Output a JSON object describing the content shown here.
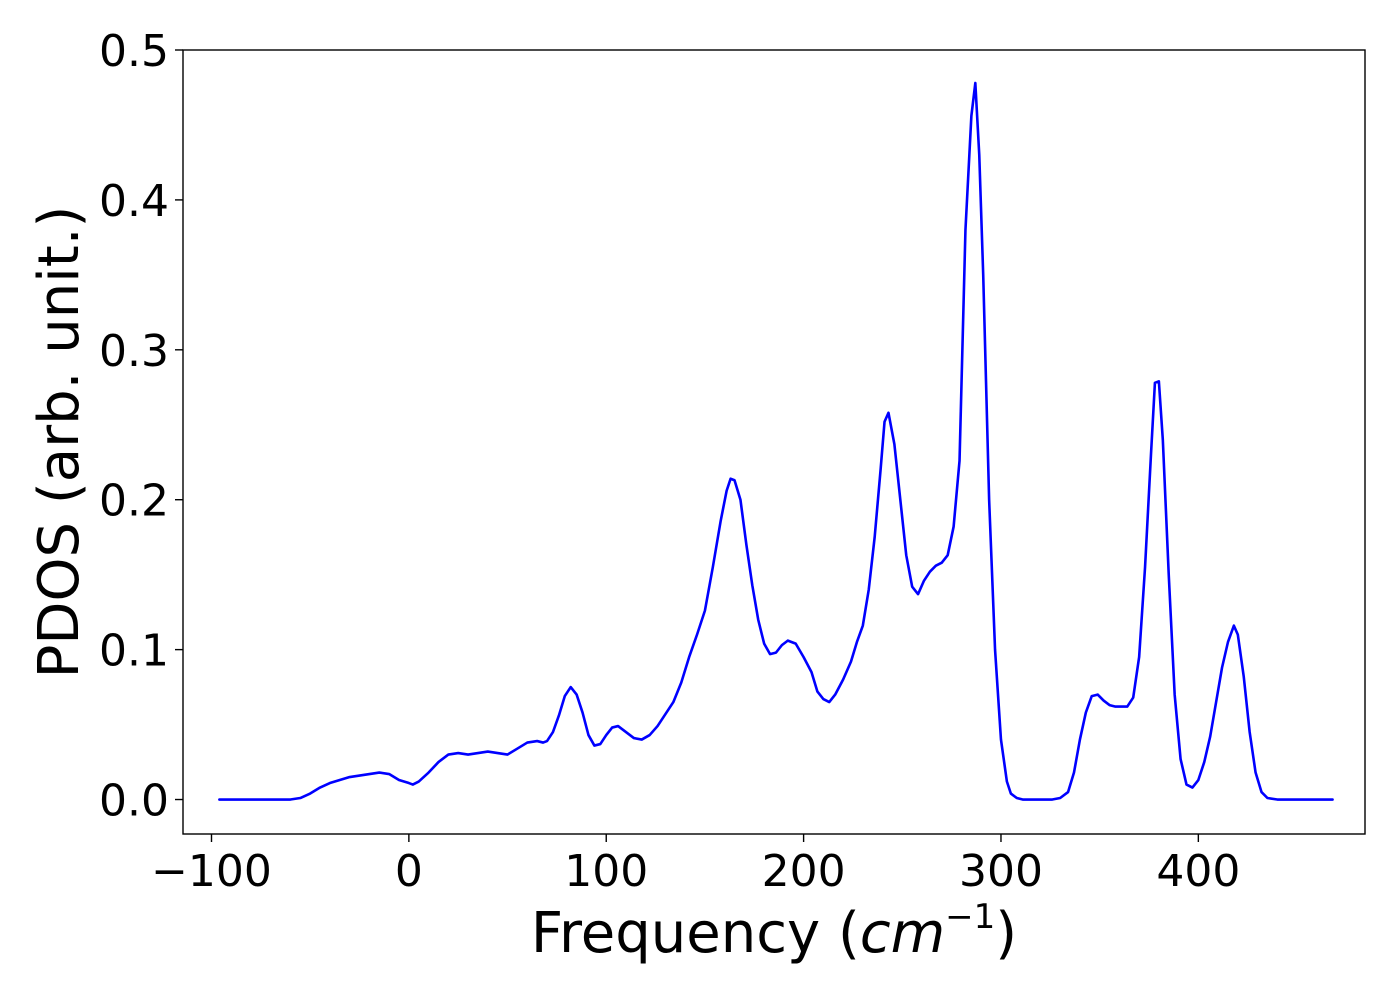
{
  "chart_data": {
    "type": "line",
    "title": "",
    "xlabel": "Frequency (cm⁻¹)",
    "xlabel_parts": {
      "prefix": "Frequency (",
      "unit_base": "cm",
      "unit_exp": "−1",
      "suffix": ")"
    },
    "ylabel": "PDOS (arb. unit.)",
    "xlim": [
      -100,
      470
    ],
    "ylim": [
      -0.023,
      0.5
    ],
    "grid": false,
    "legend": "none",
    "x_ticks": [
      -100,
      0,
      100,
      200,
      300,
      400
    ],
    "x_tick_labels": [
      "−100",
      "0",
      "100",
      "200",
      "300",
      "400"
    ],
    "y_ticks": [
      0.0,
      0.1,
      0.2,
      0.3,
      0.4,
      0.5
    ],
    "y_tick_labels": [
      "0.0",
      "0.1",
      "0.2",
      "0.3",
      "0.4",
      "0.5"
    ],
    "series": [
      {
        "color": "#0000ff",
        "x": [
          -96,
          -80,
          -70,
          -60,
          -55,
          -50,
          -45,
          -40,
          -35,
          -30,
          -25,
          -20,
          -15,
          -10,
          -5,
          0,
          2,
          5,
          10,
          15,
          20,
          25,
          30,
          35,
          40,
          45,
          50,
          55,
          60,
          65,
          68,
          70,
          73,
          76,
          79,
          82,
          85,
          88,
          91,
          94,
          97,
          100,
          103,
          106,
          110,
          114,
          118,
          122,
          126,
          130,
          134,
          138,
          142,
          146,
          150,
          154,
          158,
          161,
          163,
          165,
          168,
          171,
          174,
          177,
          180,
          183,
          186,
          189,
          192,
          196,
          200,
          204,
          207,
          210,
          213,
          216,
          220,
          224,
          227,
          230,
          233,
          236,
          239,
          241,
          243,
          246,
          249,
          252,
          255,
          258,
          261,
          264,
          267,
          270,
          273,
          276,
          279,
          282,
          285,
          287,
          289,
          291,
          294,
          297,
          300,
          303,
          305,
          308,
          311,
          314,
          318,
          322,
          326,
          330,
          334,
          337,
          340,
          343,
          346,
          349,
          352,
          355,
          358,
          361,
          364,
          367,
          370,
          373,
          376,
          378,
          380,
          382,
          385,
          388,
          391,
          394,
          397,
          400,
          403,
          406,
          409,
          412,
          415,
          418,
          420,
          423,
          426,
          429,
          432,
          435,
          440,
          450,
          460,
          468
        ],
        "y": [
          0.0,
          0.0,
          0.0,
          0.0,
          0.001,
          0.004,
          0.008,
          0.011,
          0.013,
          0.015,
          0.016,
          0.017,
          0.018,
          0.017,
          0.013,
          0.011,
          0.01,
          0.012,
          0.018,
          0.025,
          0.03,
          0.031,
          0.03,
          0.031,
          0.032,
          0.031,
          0.03,
          0.034,
          0.038,
          0.039,
          0.038,
          0.039,
          0.045,
          0.056,
          0.069,
          0.075,
          0.07,
          0.058,
          0.043,
          0.036,
          0.037,
          0.043,
          0.048,
          0.049,
          0.045,
          0.041,
          0.04,
          0.043,
          0.049,
          0.057,
          0.065,
          0.078,
          0.095,
          0.11,
          0.126,
          0.155,
          0.186,
          0.206,
          0.214,
          0.213,
          0.2,
          0.17,
          0.143,
          0.12,
          0.104,
          0.097,
          0.098,
          0.103,
          0.106,
          0.104,
          0.095,
          0.085,
          0.072,
          0.067,
          0.065,
          0.07,
          0.08,
          0.092,
          0.105,
          0.116,
          0.14,
          0.175,
          0.22,
          0.252,
          0.258,
          0.237,
          0.2,
          0.163,
          0.142,
          0.137,
          0.146,
          0.152,
          0.156,
          0.158,
          0.163,
          0.182,
          0.226,
          0.38,
          0.456,
          0.478,
          0.43,
          0.35,
          0.2,
          0.1,
          0.04,
          0.012,
          0.004,
          0.001,
          0.0,
          0.0,
          0.0,
          0.0,
          0.0,
          0.001,
          0.005,
          0.018,
          0.04,
          0.058,
          0.069,
          0.07,
          0.066,
          0.063,
          0.062,
          0.062,
          0.062,
          0.068,
          0.095,
          0.155,
          0.23,
          0.278,
          0.279,
          0.24,
          0.15,
          0.07,
          0.027,
          0.01,
          0.008,
          0.013,
          0.025,
          0.042,
          0.065,
          0.088,
          0.105,
          0.116,
          0.11,
          0.082,
          0.045,
          0.018,
          0.005,
          0.001,
          0.0,
          0.0,
          0.0,
          0.0
        ]
      }
    ]
  }
}
